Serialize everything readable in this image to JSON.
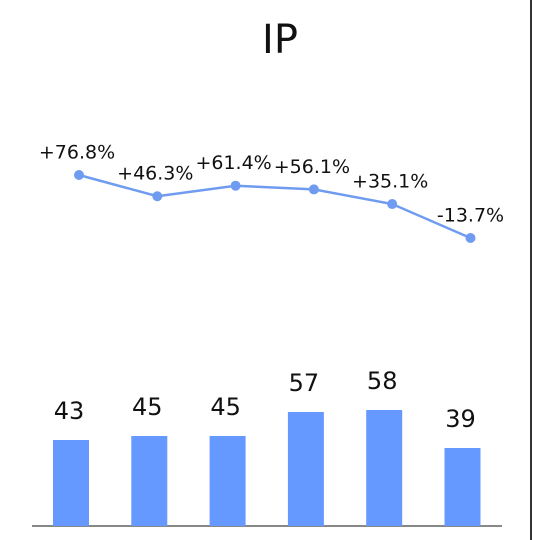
{
  "chart_data": {
    "type": "bar",
    "title": "IP",
    "series": [
      {
        "type": "bar",
        "color": "#6699ff",
        "values": [
          43,
          45,
          45,
          57,
          58,
          39
        ]
      },
      {
        "type": "line",
        "axis": "y2",
        "color": "#6f9cf0",
        "values": [
          76.8,
          46.3,
          61.4,
          56.1,
          35.1,
          -13.7
        ],
        "value_labels": [
          "+76.8%",
          "+46.3%",
          "+61.4%",
          "+56.1%",
          "+35.1%",
          "-13.7%"
        ]
      }
    ]
  }
}
